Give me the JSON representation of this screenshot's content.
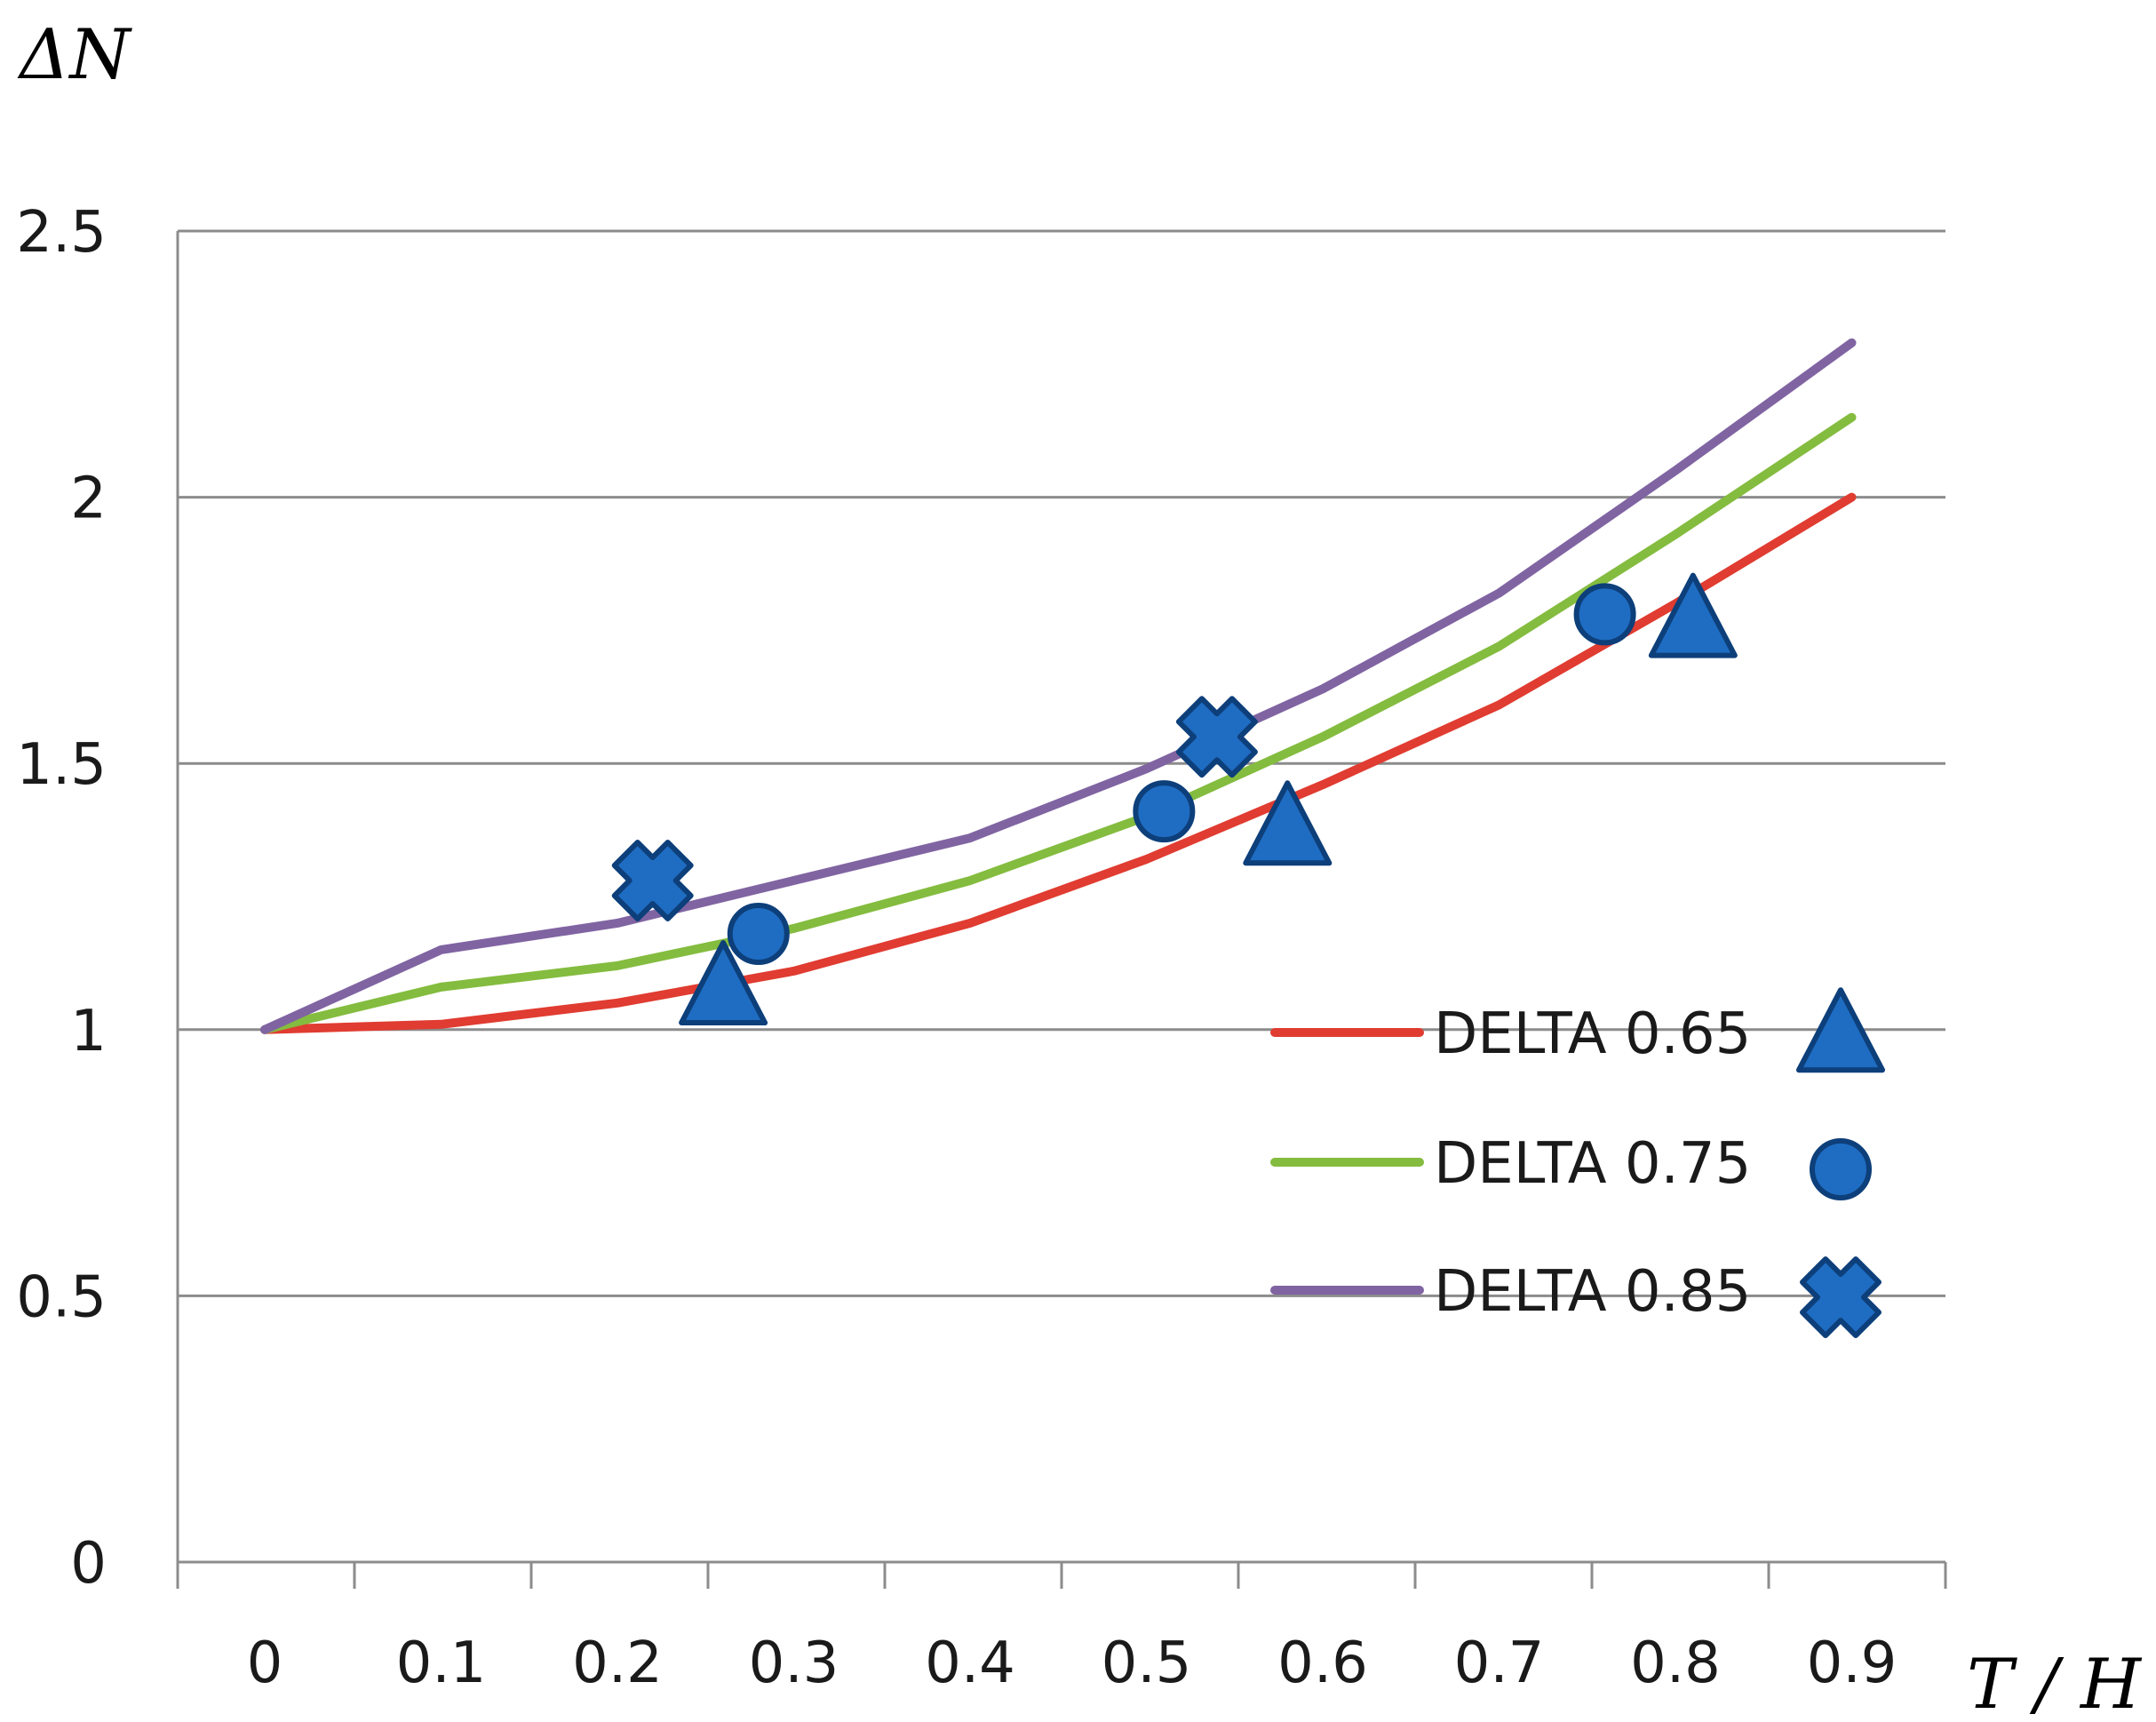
{
  "chart_data": {
    "type": "line",
    "title": "",
    "ylabel": "ΔN",
    "xlabel": "T / H",
    "ylim": [
      0,
      2.5
    ],
    "yticks": [
      "0",
      "0.5",
      "1",
      "1.5",
      "2",
      "2.5"
    ],
    "categories": [
      "0",
      "0.1",
      "0.2",
      "0.3",
      "0.4",
      "0.5",
      "0.6",
      "0.7",
      "0.8",
      "0.9"
    ],
    "grid": true,
    "legend_position": "right",
    "colors": {
      "marker_fill": "#1f6dc2",
      "marker_stroke": "#0d3f7a",
      "grid": "#8c8c8c"
    },
    "series": [
      {
        "name": "DELTA 0.65",
        "color": "#e03c31",
        "marker": "triangle",
        "x": [
          0,
          0.1,
          0.2,
          0.3,
          0.4,
          0.5,
          0.6,
          0.7,
          0.8,
          0.9
        ],
        "values": [
          1.0,
          1.01,
          1.05,
          1.11,
          1.2,
          1.32,
          1.46,
          1.61,
          1.8,
          2.0
        ],
        "points": [
          {
            "x": 0.26,
            "y": 1.07
          },
          {
            "x": 0.58,
            "y": 1.37
          },
          {
            "x": 0.81,
            "y": 1.76
          }
        ]
      },
      {
        "name": "DELTA 0.75",
        "color": "#84bc3f",
        "marker": "circle",
        "x": [
          0,
          0.1,
          0.2,
          0.3,
          0.4,
          0.5,
          0.6,
          0.7,
          0.8,
          0.9
        ],
        "values": [
          1.0,
          1.08,
          1.12,
          1.19,
          1.28,
          1.4,
          1.55,
          1.72,
          1.93,
          2.15
        ],
        "points": [
          {
            "x": 0.28,
            "y": 1.18
          },
          {
            "x": 0.51,
            "y": 1.41
          },
          {
            "x": 0.76,
            "y": 1.78
          }
        ]
      },
      {
        "name": "DELTA 0.85",
        "color": "#8064a2",
        "marker": "x",
        "x": [
          0,
          0.1,
          0.2,
          0.3,
          0.4,
          0.5,
          0.6,
          0.7,
          0.8,
          0.9
        ],
        "values": [
          1.0,
          1.15,
          1.2,
          1.28,
          1.36,
          1.49,
          1.64,
          1.82,
          2.05,
          2.29
        ],
        "points": [
          {
            "x": 0.22,
            "y": 1.28
          },
          {
            "x": 0.54,
            "y": 1.55
          }
        ]
      }
    ]
  }
}
